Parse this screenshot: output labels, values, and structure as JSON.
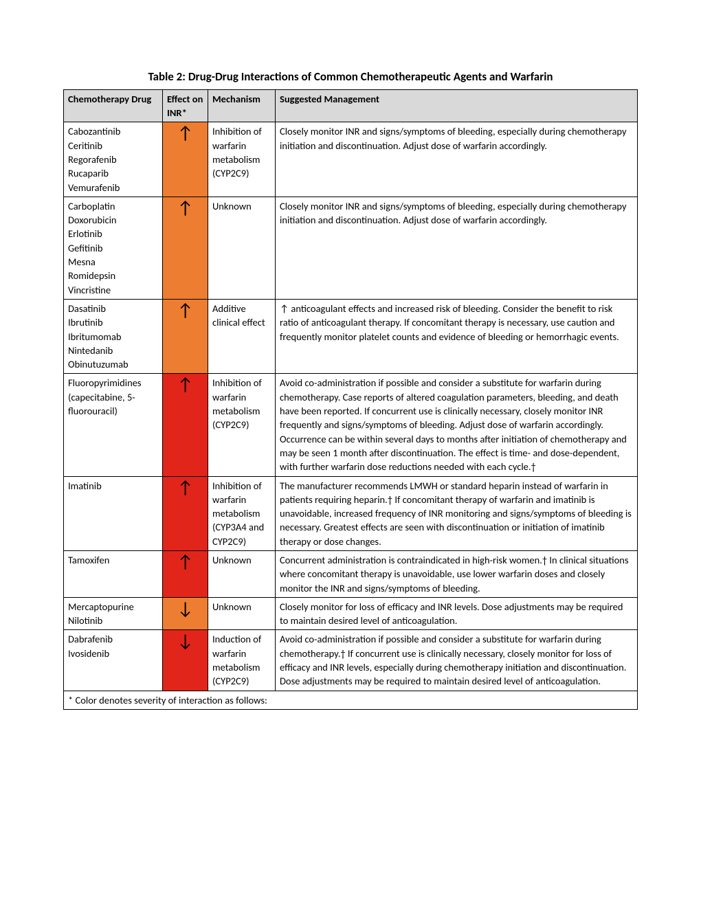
{
  "title": "Table 2: Drug-Drug Interactions of Common Chemotherapeutic Agents and Warfarin",
  "columns": {
    "drug": "Chemotherapy Drug",
    "effect": "Effect on INR*",
    "mechanism": "Mechanism",
    "management": "Suggested Management"
  },
  "colors": {
    "header_bg": "#d9d9d9",
    "orange": "#ed7d31",
    "red": "#e1251b",
    "border": "#000000",
    "text": "#000000"
  },
  "arrows": {
    "up": "↑",
    "down": "↓"
  },
  "rows": [
    {
      "drugs": "Cabozantinib\nCeritinib\nRegorafenib\nRucaparib\nVemurafenib",
      "effect_arrow": "up",
      "effect_color": "orange",
      "mechanism": "Inhibition of warfarin metabolism (CYP2C9)",
      "management": "Closely monitor INR and signs/symptoms of bleeding, especially during chemotherapy initiation and discontinuation. Adjust dose of warfarin accordingly."
    },
    {
      "drugs": "Carboplatin\nDoxorubicin\nErlotinib\nGefitinib\nMesna\nRomidepsin\nVincristine",
      "effect_arrow": "up",
      "effect_color": "orange",
      "mechanism": "Unknown",
      "management": "Closely monitor INR and signs/symptoms of bleeding, especially during chemotherapy initiation and discontinuation. Adjust dose of warfarin accordingly."
    },
    {
      "drugs": "Dasatinib\nIbrutinib\nIbritumomab\nNintedanib\nObinutuzumab",
      "effect_arrow": "up",
      "effect_color": "orange",
      "mechanism": "Additive clinical effect",
      "management": "↑ anticoagulant effects and increased risk of bleeding. Consider the benefit to risk ratio of anticoagulant therapy. If concomitant therapy is necessary, use caution and frequently monitor platelet counts and evidence of bleeding or hemorrhagic events."
    },
    {
      "drugs": "Fluoropyrimidines (capecitabine, 5-fluorouracil)",
      "effect_arrow": "up",
      "effect_color": "red",
      "mechanism": "Inhibition of warfarin metabolism (CYP2C9)",
      "management": "Avoid co-administration if possible and consider a substitute for warfarin during chemotherapy. Case reports of altered coagulation parameters, bleeding, and death have been reported. If concurrent use is clinically necessary, closely monitor INR frequently and signs/symptoms of bleeding. Adjust dose of warfarin accordingly. Occurrence can be within several days to months after initiation of chemotherapy and may be seen 1 month after discontinuation. The effect is time- and dose-dependent, with further warfarin dose reductions needed with each cycle.†"
    },
    {
      "drugs": "Imatinib",
      "effect_arrow": "up",
      "effect_color": "red",
      "mechanism": "Inhibition of warfarin metabolism (CYP3A4 and CYP2C9)",
      "management": "The manufacturer recommends LMWH or standard heparin instead of warfarin in patients requiring heparin.† If concomitant therapy of warfarin and imatinib is unavoidable, increased frequency of INR monitoring and signs/symptoms of bleeding is necessary. Greatest effects are seen with discontinuation or initiation of imatinib therapy or dose changes."
    },
    {
      "drugs": "Tamoxifen",
      "effect_arrow": "up",
      "effect_color": "red",
      "mechanism": "Unknown",
      "management": "Concurrent administration is contraindicated in high-risk women.† In clinical situations where concomitant therapy is unavoidable, use lower warfarin doses and closely monitor the INR and signs/symptoms of bleeding."
    },
    {
      "drugs": "Mercaptopurine\nNilotinib",
      "effect_arrow": "down",
      "effect_color": "orange",
      "mechanism": "Unknown",
      "management": "Closely monitor for loss of efficacy and INR levels. Dose adjustments may be required to maintain desired level of anticoagulation."
    },
    {
      "drugs": "Dabrafenib\nIvosidenib",
      "effect_arrow": "down",
      "effect_color": "red",
      "mechanism": "Induction of warfarin metabolism (CYP2C9)",
      "management": "Avoid co-administration if possible and consider a substitute for warfarin during chemotherapy.† If concurrent use is clinically necessary, closely monitor for loss of efficacy and INR levels, especially during chemotherapy initiation and discontinuation. Dose adjustments may be required to maintain desired level of anticoagulation."
    }
  ],
  "footnote": "* Color denotes severity of interaction as follows:"
}
